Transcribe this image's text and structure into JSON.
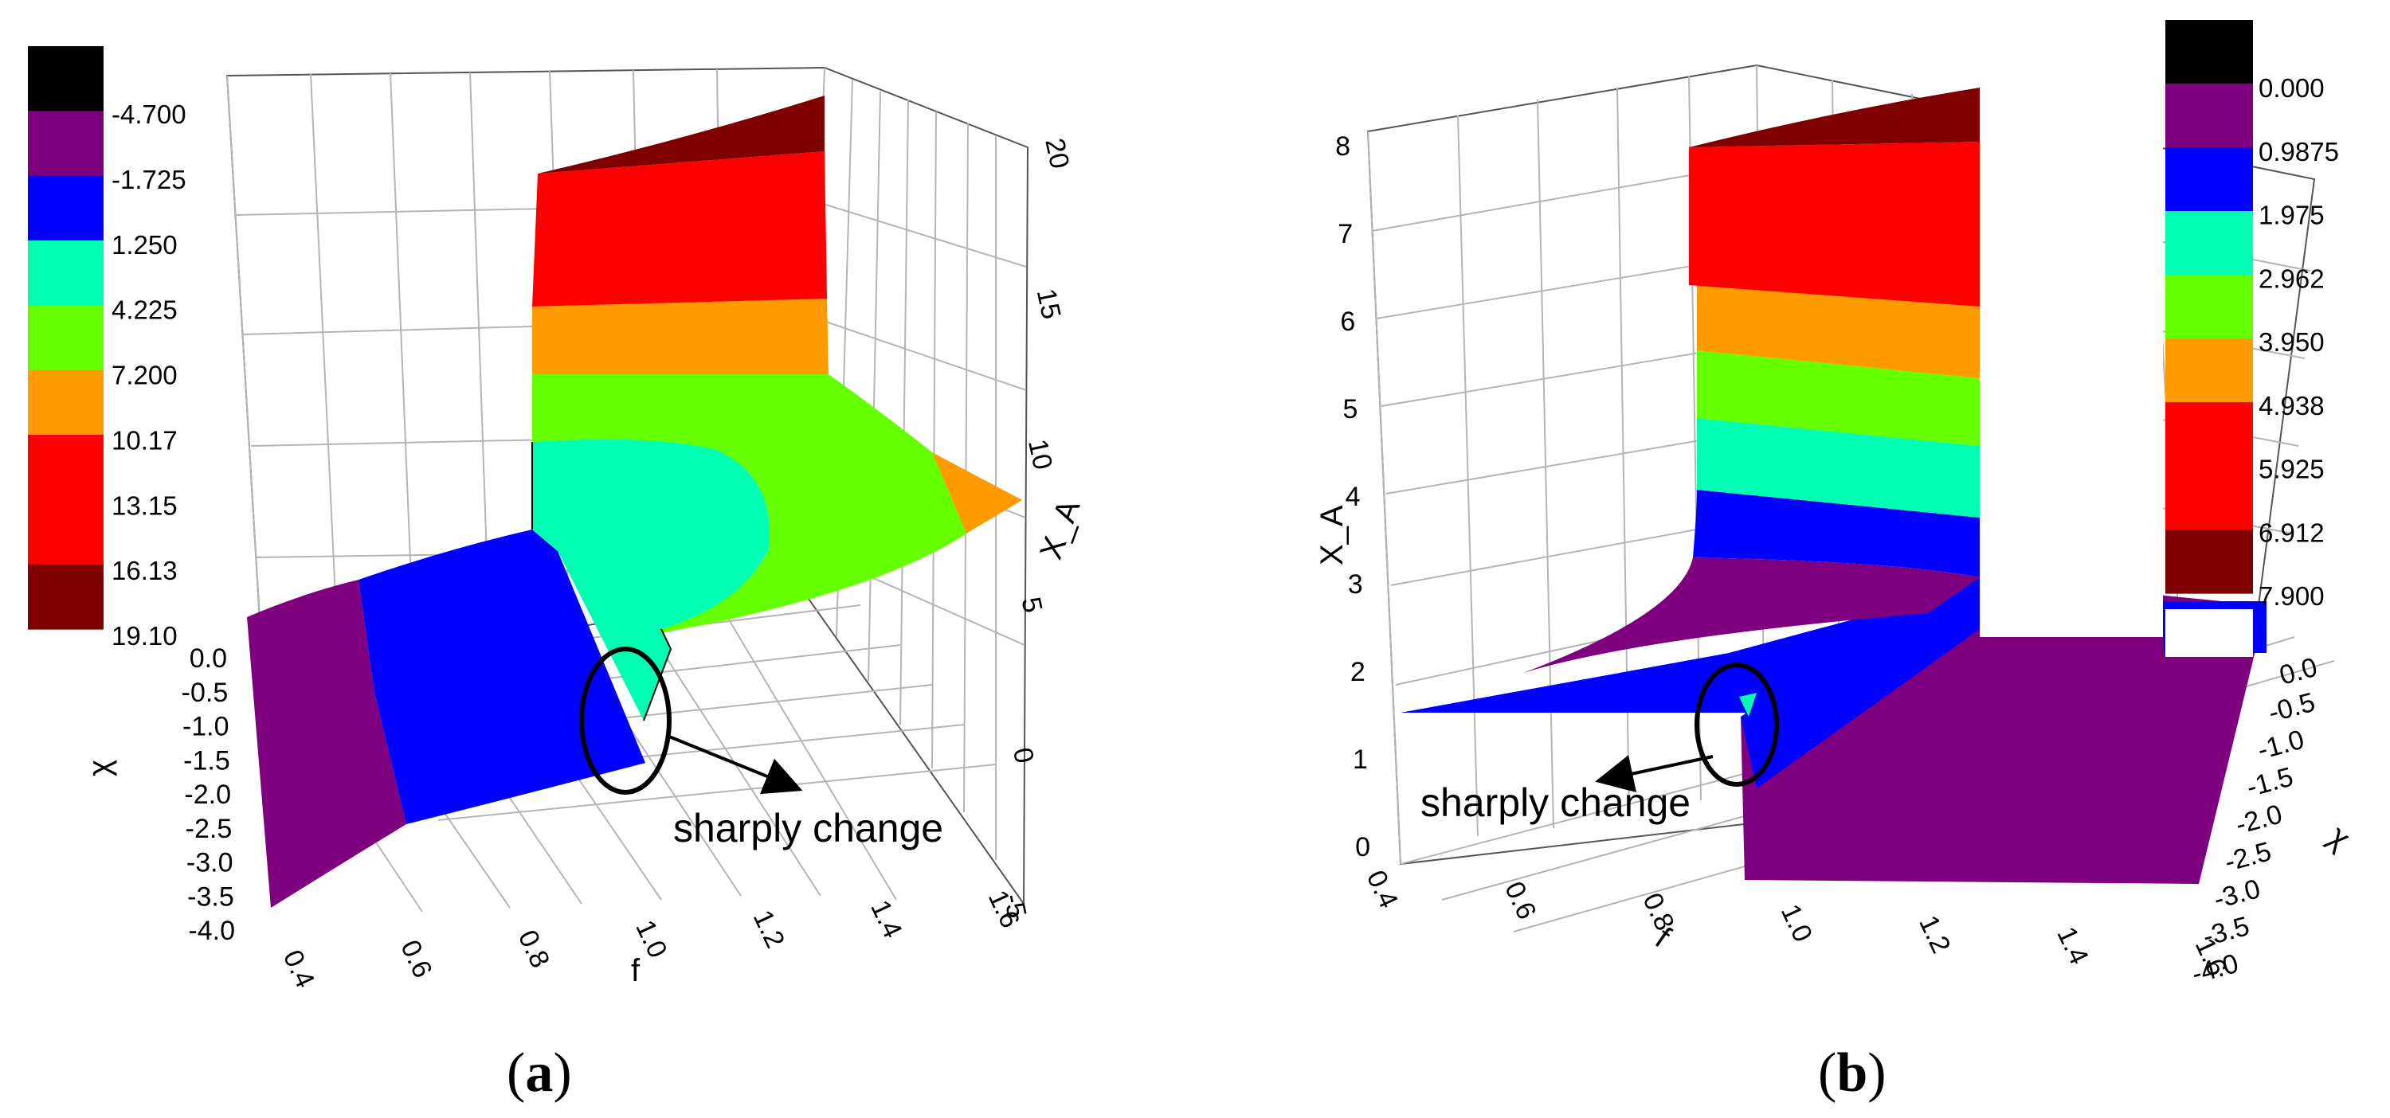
{
  "figure": {
    "panels": [
      {
        "label_open": "(",
        "label_letter": "a",
        "label_close": ")"
      },
      {
        "label_open": "(",
        "label_letter": "b",
        "label_close": ")"
      }
    ]
  },
  "chart_data": [
    {
      "type": "surface3d",
      "panel": "a",
      "x_axis": {
        "label": "f",
        "range": [
          0.4,
          1.6
        ],
        "ticks": [
          "0.4",
          "0.6",
          "0.8",
          "1.0",
          "1.2",
          "1.4",
          "1.6"
        ]
      },
      "y_axis": {
        "label": "χ",
        "range": [
          -4.0,
          0.0
        ],
        "ticks": [
          "0.0",
          "-0.5",
          "-1.0",
          "-1.5",
          "-2.0",
          "-2.5",
          "-3.0",
          "-3.5",
          "-4.0"
        ]
      },
      "z_axis": {
        "label": "X_A",
        "range": [
          -5,
          20
        ],
        "ticks": [
          "-5",
          "0",
          "5",
          "10",
          "15",
          "20"
        ]
      },
      "legend": {
        "levels": [
          "-4.700",
          "-1.725",
          "1.250",
          "4.225",
          "7.200",
          "10.17",
          "13.15",
          "16.13",
          "19.10"
        ],
        "colors": [
          "#000000",
          "#7f007f",
          "#0000ff",
          "#00ffb2",
          "#66ff00",
          "#ff9a00",
          "#ff0000",
          "#ff0000",
          "#7f0000"
        ]
      },
      "bands": [
        {
          "name": "purple",
          "color": "#7f007f"
        },
        {
          "name": "blue",
          "color": "#0000ff"
        },
        {
          "name": "cyan",
          "color": "#00ffb2"
        },
        {
          "name": "green",
          "color": "#66ff00"
        },
        {
          "name": "orange",
          "color": "#ff9a00"
        },
        {
          "name": "red",
          "color": "#ff0000"
        },
        {
          "name": "dark-red",
          "color": "#7f0000"
        }
      ],
      "annotation": {
        "text": "sharply change"
      }
    },
    {
      "type": "surface3d",
      "panel": "b",
      "x_axis": {
        "label": "f",
        "range": [
          0.4,
          1.6
        ],
        "ticks": [
          "0.4",
          "0.6",
          "0.8",
          "1.0",
          "1.2",
          "1.4",
          "1.6"
        ]
      },
      "y_axis": {
        "label": "χ",
        "range": [
          -4.0,
          0.0
        ],
        "ticks": [
          "0.0",
          "-0.5",
          "-1.0",
          "-1.5",
          "-2.0",
          "-2.5",
          "-3.0",
          "-3.5",
          "-4.0"
        ]
      },
      "z_axis": {
        "label": "X_A",
        "range": [
          0,
          8
        ],
        "ticks": [
          "0",
          "1",
          "2",
          "3",
          "4",
          "5",
          "6",
          "7",
          "8"
        ]
      },
      "legend": {
        "levels": [
          "0.000",
          "0.9875",
          "1.975",
          "2.962",
          "3.950",
          "4.938",
          "5.925",
          "6.912",
          "7.900"
        ],
        "colors": [
          "#000000",
          "#7f007f",
          "#0000ff",
          "#00ffb2",
          "#66ff00",
          "#ff9a00",
          "#ff0000",
          "#ff0000",
          "#7f0000"
        ]
      },
      "bands": [
        {
          "name": "purple",
          "color": "#7f007f"
        },
        {
          "name": "blue",
          "color": "#0000ff"
        },
        {
          "name": "cyan",
          "color": "#00ffb2"
        },
        {
          "name": "green",
          "color": "#66ff00"
        },
        {
          "name": "orange",
          "color": "#ff9a00"
        },
        {
          "name": "red",
          "color": "#ff0000"
        },
        {
          "name": "dark-red",
          "color": "#7f0000"
        }
      ],
      "annotation": {
        "text": "sharply change"
      }
    }
  ]
}
